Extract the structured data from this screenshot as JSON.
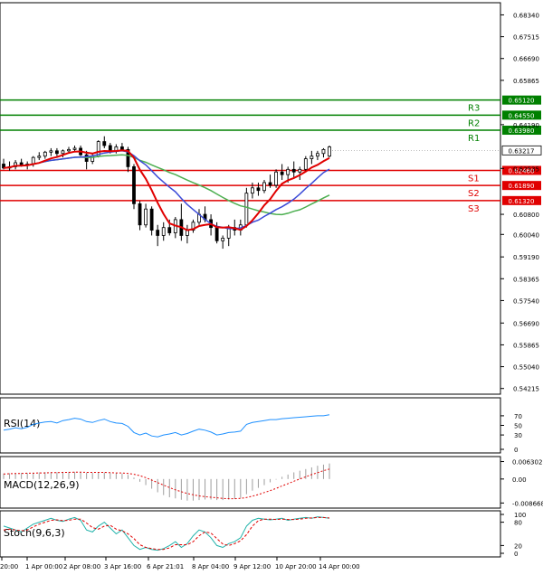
{
  "chart_data": [
    {
      "type": "candlestick",
      "name": "price",
      "y_ticks": [
        "0.68340",
        "0.67515",
        "0.66690",
        "0.65865",
        "0.64190",
        "0.62535",
        "0.60800",
        "0.60040",
        "0.59190",
        "0.58365",
        "0.57540",
        "0.56690",
        "0.55865",
        "0.55040",
        "0.54215"
      ],
      "levels": [
        {
          "label": "R3",
          "value": "0.65120",
          "color": "#008000"
        },
        {
          "label": "R2",
          "value": "0.64550",
          "color": "#008000"
        },
        {
          "label": "R1",
          "value": "0.63980",
          "color": "#008000"
        },
        {
          "label": "S1",
          "value": "0.62460",
          "color": "#e00000"
        },
        {
          "label": "S2",
          "value": "0.61890",
          "color": "#e00000"
        },
        {
          "label": "S3",
          "value": "0.61320",
          "color": "#e00000"
        }
      ],
      "current_price": "0.63217",
      "candles": [
        [
          0.627,
          0.629,
          0.625,
          0.6255
        ],
        [
          0.6255,
          0.628,
          0.6245,
          0.626
        ],
        [
          0.626,
          0.6285,
          0.625,
          0.6275
        ],
        [
          0.6275,
          0.629,
          0.626,
          0.6265
        ],
        [
          0.6265,
          0.628,
          0.625,
          0.627
        ],
        [
          0.627,
          0.63,
          0.626,
          0.6295
        ],
        [
          0.6295,
          0.6315,
          0.6285,
          0.63
        ],
        [
          0.63,
          0.632,
          0.629,
          0.6315
        ],
        [
          0.6315,
          0.633,
          0.63,
          0.632
        ],
        [
          0.632,
          0.633,
          0.63,
          0.631
        ],
        [
          0.631,
          0.6325,
          0.6295,
          0.632
        ],
        [
          0.632,
          0.6335,
          0.631,
          0.6325
        ],
        [
          0.6325,
          0.634,
          0.6315,
          0.633
        ],
        [
          0.633,
          0.634,
          0.63,
          0.6305
        ],
        [
          0.6305,
          0.632,
          0.625,
          0.628
        ],
        [
          0.628,
          0.631,
          0.627,
          0.63
        ],
        [
          0.63,
          0.636,
          0.6295,
          0.6355
        ],
        [
          0.6355,
          0.6375,
          0.633,
          0.634
        ],
        [
          0.634,
          0.635,
          0.631,
          0.632
        ],
        [
          0.632,
          0.6345,
          0.631,
          0.6335
        ],
        [
          0.6335,
          0.635,
          0.632,
          0.6325
        ],
        [
          0.6325,
          0.6335,
          0.624,
          0.626
        ],
        [
          0.626,
          0.627,
          0.61,
          0.612
        ],
        [
          0.612,
          0.613,
          0.602,
          0.604
        ],
        [
          0.604,
          0.612,
          0.603,
          0.61
        ],
        [
          0.61,
          0.611,
          0.6,
          0.602
        ],
        [
          0.602,
          0.604,
          0.596,
          0.6
        ],
        [
          0.6,
          0.605,
          0.598,
          0.603
        ],
        [
          0.603,
          0.606,
          0.6,
          0.601
        ],
        [
          0.601,
          0.607,
          0.599,
          0.606
        ],
        [
          0.606,
          0.612,
          0.598,
          0.6
        ],
        [
          0.6,
          0.604,
          0.597,
          0.602
        ],
        [
          0.602,
          0.606,
          0.601,
          0.605
        ],
        [
          0.605,
          0.61,
          0.604,
          0.608
        ],
        [
          0.608,
          0.611,
          0.605,
          0.606
        ],
        [
          0.606,
          0.608,
          0.6,
          0.603
        ],
        [
          0.603,
          0.605,
          0.597,
          0.598
        ],
        [
          0.598,
          0.6,
          0.595,
          0.599
        ],
        [
          0.599,
          0.604,
          0.596,
          0.603
        ],
        [
          0.603,
          0.606,
          0.6,
          0.602
        ],
        [
          0.602,
          0.606,
          0.6,
          0.604
        ],
        [
          0.604,
          0.618,
          0.603,
          0.616
        ],
        [
          0.616,
          0.62,
          0.614,
          0.618
        ],
        [
          0.618,
          0.62,
          0.615,
          0.617
        ],
        [
          0.617,
          0.621,
          0.616,
          0.62
        ],
        [
          0.62,
          0.623,
          0.618,
          0.619
        ],
        [
          0.619,
          0.625,
          0.618,
          0.624
        ],
        [
          0.624,
          0.627,
          0.621,
          0.623
        ],
        [
          0.623,
          0.626,
          0.62,
          0.625
        ],
        [
          0.625,
          0.628,
          0.622,
          0.624
        ],
        [
          0.624,
          0.626,
          0.621,
          0.625
        ],
        [
          0.625,
          0.63,
          0.624,
          0.629
        ],
        [
          0.629,
          0.632,
          0.627,
          0.63
        ],
        [
          0.63,
          0.632,
          0.6285,
          0.631
        ],
        [
          0.631,
          0.633,
          0.6295,
          0.6325
        ],
        [
          0.63,
          0.634,
          0.6295,
          0.6335
        ]
      ],
      "ma_fast_color": "#e00000",
      "ma_mid_color": "#3b4bd8",
      "ma_slow_color": "#4caf50"
    },
    {
      "type": "line",
      "name": "RSI(14)",
      "y_ticks": [
        "70",
        "50",
        "30",
        "0"
      ],
      "color": "#1e90ff",
      "values": [
        40,
        42,
        45,
        43,
        46,
        52,
        55,
        57,
        58,
        55,
        60,
        62,
        65,
        63,
        58,
        56,
        60,
        63,
        58,
        55,
        54,
        48,
        35,
        30,
        34,
        28,
        26,
        30,
        32,
        35,
        30,
        33,
        38,
        42,
        40,
        36,
        30,
        32,
        35,
        36,
        38,
        52,
        56,
        58,
        60,
        62,
        62,
        64,
        65,
        66,
        67,
        68,
        69,
        70,
        70,
        72
      ]
    },
    {
      "type": "bar",
      "name": "MACD(12,26,9)",
      "y_ticks": [
        "0.006302",
        "0.00",
        "-0.008668"
      ],
      "bar_color": "#9e9e9e",
      "signal_color": "#e00000",
      "values": [
        0.002,
        0.0021,
        0.0021,
        0.0022,
        0.0022,
        0.0023,
        0.0024,
        0.0025,
        0.0025,
        0.0025,
        0.0026,
        0.0026,
        0.0026,
        0.0025,
        0.0023,
        0.0022,
        0.0024,
        0.0024,
        0.0022,
        0.0021,
        0.002,
        0.0015,
        0.0005,
        -0.001,
        -0.0022,
        -0.0035,
        -0.0048,
        -0.0058,
        -0.0066,
        -0.007,
        -0.0075,
        -0.0078,
        -0.0078,
        -0.0076,
        -0.0074,
        -0.0074,
        -0.0076,
        -0.0076,
        -0.0074,
        -0.0072,
        -0.0068,
        -0.0055,
        -0.0042,
        -0.0032,
        -0.0022,
        -0.0012,
        -0.0002,
        0.0008,
        0.0016,
        0.0024,
        0.003,
        0.0036,
        0.0042,
        0.0048,
        0.0052,
        0.0056
      ],
      "signal": [
        0.0018,
        0.0019,
        0.002,
        0.002,
        0.0021,
        0.0021,
        0.0022,
        0.0022,
        0.0023,
        0.0023,
        0.0024,
        0.0024,
        0.0025,
        0.0025,
        0.0024,
        0.0024,
        0.0024,
        0.0024,
        0.0023,
        0.0022,
        0.0022,
        0.002,
        0.0017,
        0.0012,
        0.0005,
        -0.0004,
        -0.0013,
        -0.0022,
        -0.0031,
        -0.0039,
        -0.0046,
        -0.0052,
        -0.0057,
        -0.0061,
        -0.0064,
        -0.0066,
        -0.0068,
        -0.007,
        -0.0071,
        -0.0071,
        -0.007,
        -0.0067,
        -0.0062,
        -0.0056,
        -0.0049,
        -0.0042,
        -0.0034,
        -0.0025,
        -0.0017,
        -0.0008,
        0.0,
        0.0008,
        0.0016,
        0.0023,
        0.003,
        0.0036
      ]
    },
    {
      "type": "line",
      "name": "Stoch(9,6,3)",
      "y_ticks": [
        "100",
        "80",
        "20",
        "0"
      ],
      "k_color": "#20b2aa",
      "d_color": "#e00000",
      "k": [
        70,
        65,
        60,
        55,
        65,
        75,
        80,
        85,
        90,
        85,
        82,
        88,
        92,
        85,
        60,
        55,
        70,
        80,
        65,
        50,
        60,
        40,
        20,
        10,
        15,
        10,
        8,
        12,
        20,
        30,
        15,
        25,
        45,
        60,
        55,
        40,
        20,
        15,
        25,
        30,
        40,
        70,
        85,
        90,
        88,
        86,
        88,
        90,
        85,
        88,
        90,
        92,
        90,
        94,
        92,
        90
      ],
      "d": [
        60,
        62,
        60,
        58,
        60,
        68,
        75,
        80,
        85,
        86,
        84,
        85,
        88,
        88,
        78,
        66,
        62,
        70,
        72,
        62,
        58,
        50,
        38,
        22,
        15,
        12,
        10,
        10,
        14,
        22,
        22,
        22,
        30,
        45,
        55,
        52,
        38,
        24,
        20,
        25,
        32,
        48,
        70,
        84,
        88,
        88,
        87,
        88,
        87,
        87,
        88,
        90,
        91,
        92,
        92,
        91
      ]
    },
    {
      "type": "axis",
      "x_ticks": [
        "20:00",
        "1 Apr 00:00",
        "2 Apr 08:00",
        "3 Apr 16:00",
        "6 Apr 21:01",
        "8 Apr 04:00",
        "9 Apr 12:00",
        "10 Apr 20:00",
        "14 Apr 00:00"
      ]
    }
  ]
}
